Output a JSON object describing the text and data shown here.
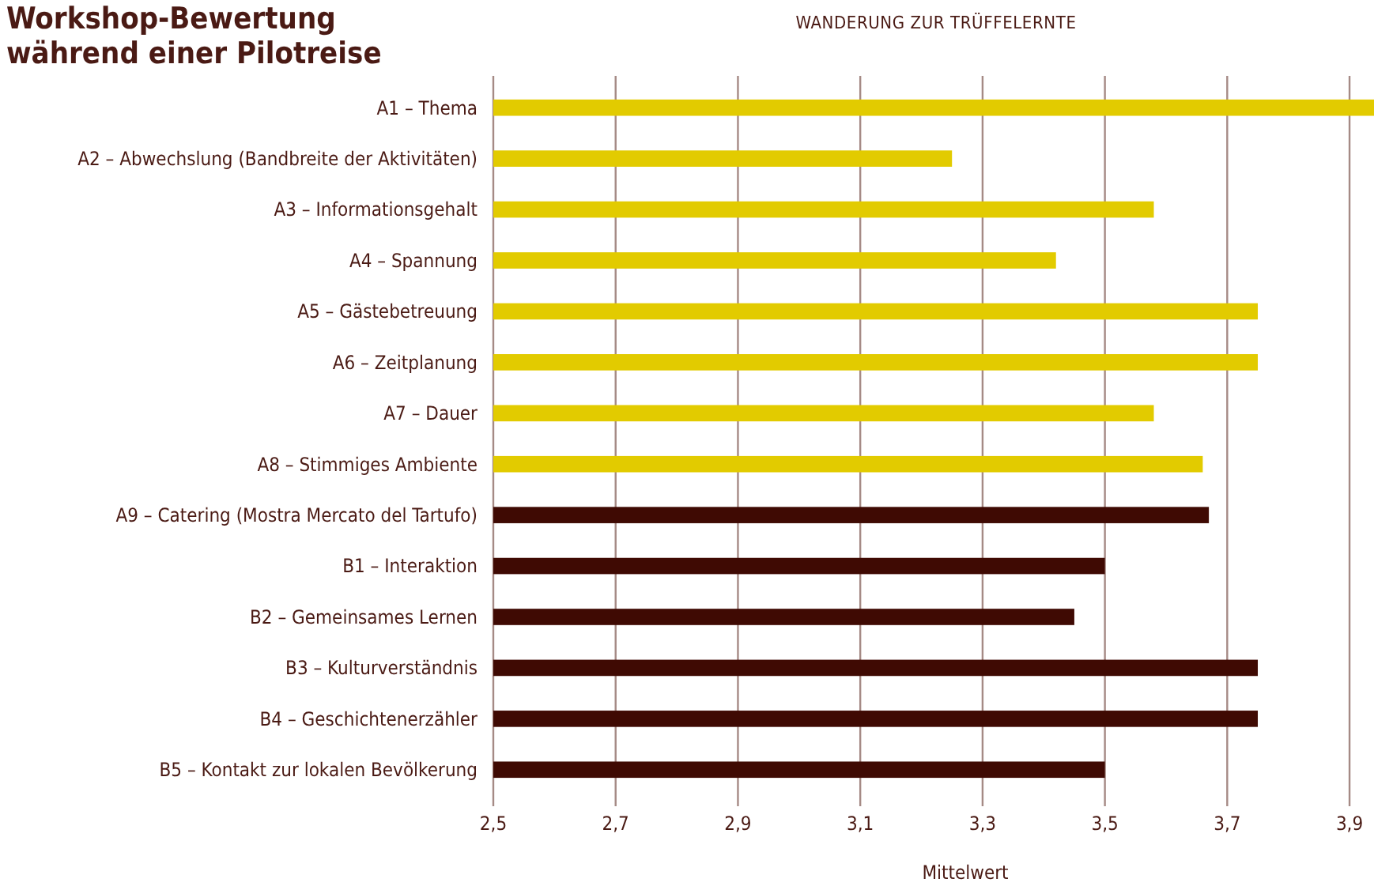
{
  "chart_data": {
    "type": "bar",
    "orientation": "horizontal",
    "title": "Workshop-Bewertung während einer Pilotreise",
    "subtitle": "WANDERUNG ZUR TRÜFFELERNTE",
    "xlabel": "Mittelwert",
    "categories": [
      "A1 – Thema",
      "A2 – Abwechslung (Bandbreite der Aktivitäten)",
      "A3 – Informationsgehalt",
      "A4 – Spannung",
      "A5 – Gästebetreuung",
      "A6 – Zeitplanung",
      "A7 – Dauer",
      "A8 – Stimmiges Ambiente",
      "A9 – Catering (Mostra Mercato del Tartufo)",
      "B1 – Interaktion",
      "B2 – Gemeinsames Lernen",
      "B3 – Kulturverständnis",
      "B4 – Geschichtenerzähler",
      "B5 – Kontakt zur lokalen Bevölkerung"
    ],
    "values": [
      3.94,
      3.25,
      3.58,
      3.42,
      3.75,
      3.75,
      3.58,
      3.66,
      3.67,
      3.5,
      3.45,
      3.75,
      3.75,
      3.5
    ],
    "colors": [
      "#e2cb00",
      "#e2cb00",
      "#e2cb00",
      "#e2cb00",
      "#e2cb00",
      "#e2cb00",
      "#e2cb00",
      "#e2cb00",
      "#3f0a03",
      "#3f0a03",
      "#3f0a03",
      "#3f0a03",
      "#3f0a03",
      "#3f0a03"
    ],
    "xlim": [
      2.5,
      3.94
    ],
    "xticks": [
      {
        "value": 2.5,
        "label": "2,5"
      },
      {
        "value": 2.7,
        "label": "2,7"
      },
      {
        "value": 2.9,
        "label": "2,9"
      },
      {
        "value": 3.1,
        "label": "3,1"
      },
      {
        "value": 3.3,
        "label": "3,3"
      },
      {
        "value": 3.5,
        "label": "3,5"
      },
      {
        "value": 3.7,
        "label": "3,7"
      },
      {
        "value": 3.9,
        "label": "3,9"
      }
    ],
    "grid": "x"
  }
}
